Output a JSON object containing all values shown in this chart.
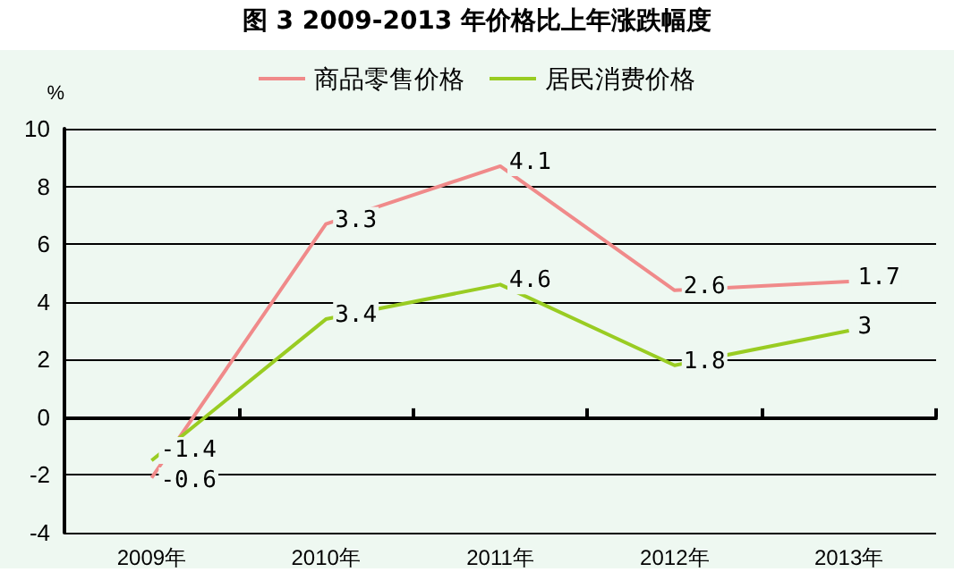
{
  "chart_data": {
    "type": "line",
    "title": "图 3 2009-2013 年价格比上年涨跌幅度",
    "ylabel": "%",
    "categories": [
      "2009年",
      "2010年",
      "2011年",
      "2012年",
      "2013年"
    ],
    "series": [
      {
        "name": "商品零售价格",
        "color": "#f08a8a",
        "values": [
          -2.1,
          6.7,
          8.7,
          4.4,
          4.7
        ]
      },
      {
        "name": "居民消费价格",
        "color": "#99cc22",
        "values": [
          -1.5,
          3.4,
          4.6,
          1.8,
          3.0
        ]
      }
    ],
    "annotations": [
      {
        "text": "-0.6",
        "x": "2009年",
        "y": -2.1
      },
      {
        "text": "3.3",
        "x": "2010年",
        "y": 6.7
      },
      {
        "text": "4.1",
        "x": "2011年",
        "y": 8.7
      },
      {
        "text": "2.6",
        "x": "2012年",
        "y": 4.4
      },
      {
        "text": "1.7",
        "x": "2013年",
        "y": 4.7
      },
      {
        "text": "-1.4",
        "x": "2009年",
        "y": -1.5
      },
      {
        "text": "3.4",
        "x": "2010年",
        "y": 3.4
      },
      {
        "text": "4.6",
        "x": "2011年",
        "y": 4.6
      },
      {
        "text": "1.8",
        "x": "2012年",
        "y": 1.8
      },
      {
        "text": "3",
        "x": "2013年",
        "y": 3.0
      }
    ],
    "ylim": [
      -4,
      10
    ],
    "yticks": [
      -4,
      -2,
      0,
      2,
      4,
      6,
      8,
      10
    ],
    "grid": "y",
    "legend": "top",
    "marker": "none"
  }
}
